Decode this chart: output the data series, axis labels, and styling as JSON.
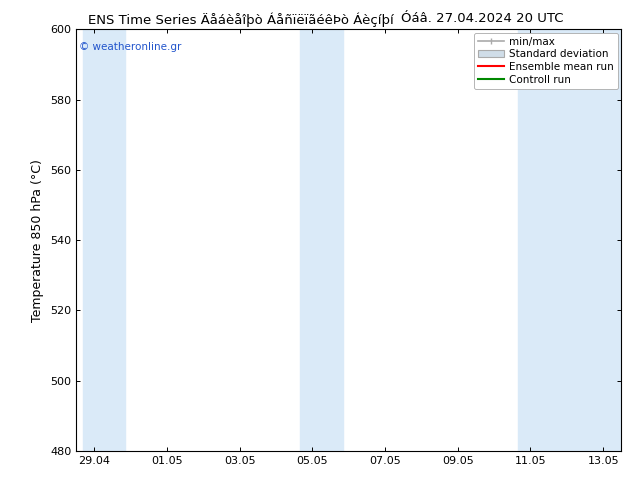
{
  "title": "ENS Time Series Äåáèåîþò ÁåñïëïãéêÞò Áèçíþí       Óáâ. 27.04.2024 20 UTC",
  "title_left": "ENS Time Series Äåáèåîþò ÁåñïëïãéêÞò Áèçíþí",
  "title_right": "Óáâ. 27.04.2024 20 UTC",
  "ylabel": "Temperature 850 hPa (°C)",
  "watermark": "© weatheronline.gr",
  "ylim": [
    480,
    600
  ],
  "yticks": [
    480,
    500,
    520,
    540,
    560,
    580,
    600
  ],
  "xtick_labels": [
    "29.04",
    "01.05",
    "03.05",
    "05.05",
    "07.05",
    "09.05",
    "11.05",
    "13.05"
  ],
  "xtick_positions": [
    0,
    2,
    4,
    6,
    8,
    10,
    12,
    14
  ],
  "shaded_bands": [
    {
      "x_start": -0.3,
      "x_end": 0.85
    },
    {
      "x_start": 5.65,
      "x_end": 6.85
    },
    {
      "x_start": 11.65,
      "x_end": 14.5
    }
  ],
  "band_color": "#daeaf8",
  "background_color": "#ffffff",
  "legend_entries": [
    "min/max",
    "Standard deviation",
    "Ensemble mean run",
    "Controll run"
  ],
  "x_min": -0.5,
  "x_max": 14.5,
  "title_fontsize": 9.5,
  "tick_fontsize": 8,
  "ylabel_fontsize": 9
}
